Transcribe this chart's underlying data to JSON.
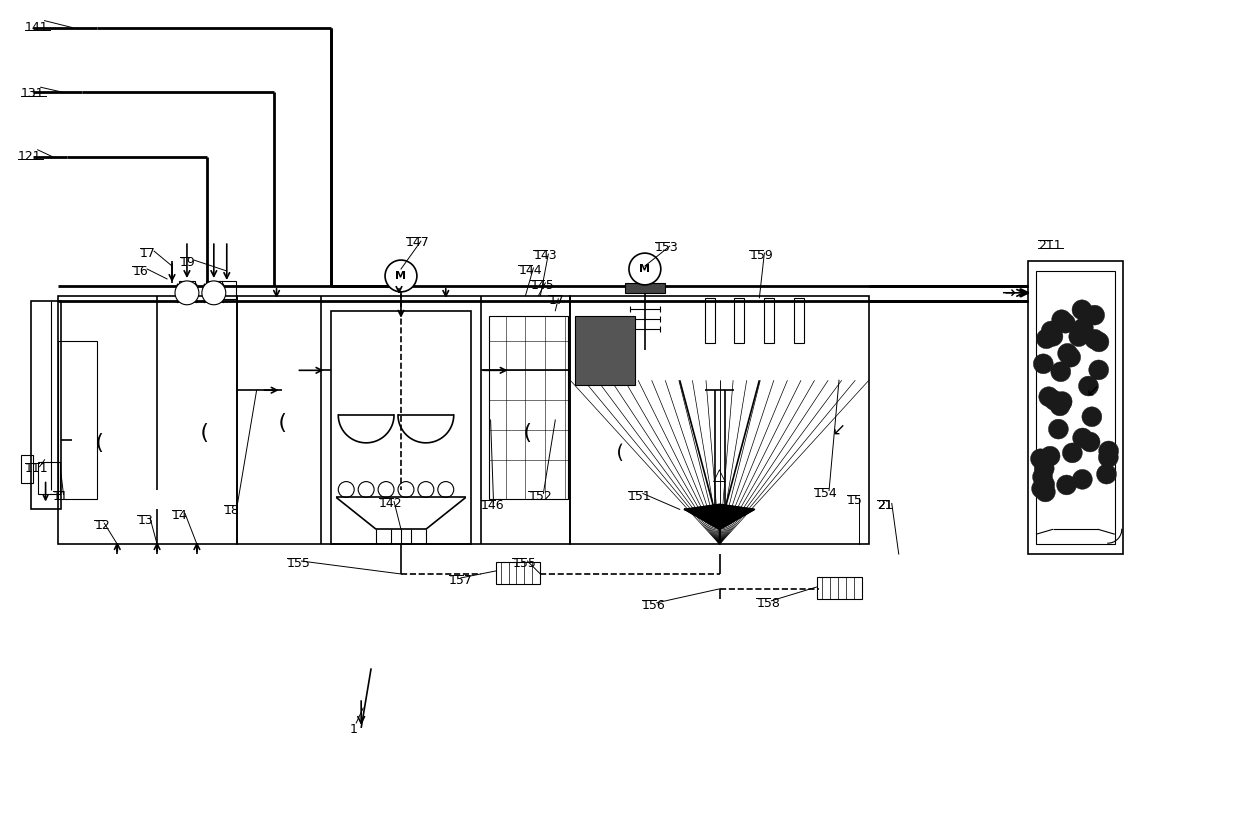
{
  "bg_color": "#ffffff",
  "line_color": "#000000",
  "fig_width": 12.4,
  "fig_height": 8.38,
  "font_size": 9,
  "lw_thick": 2.0,
  "lw_main": 1.2,
  "lw_thin": 0.8
}
